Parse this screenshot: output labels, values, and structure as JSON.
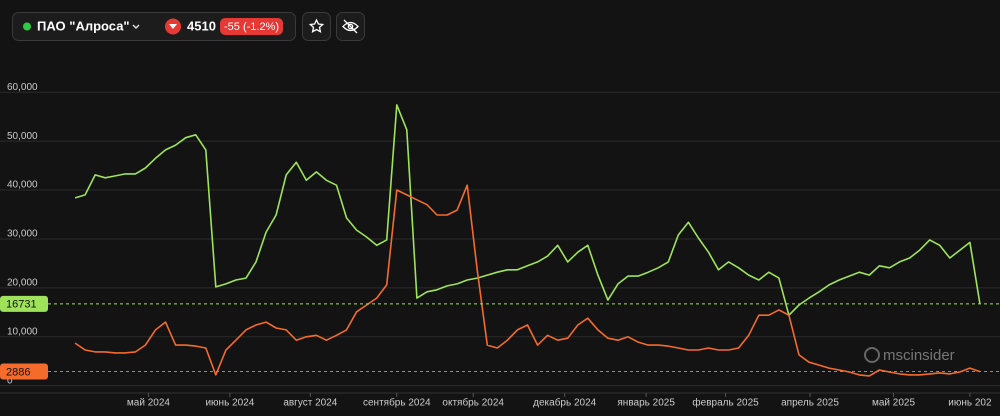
{
  "header": {
    "name": "ПАО \"Алроса\"",
    "price": "4510",
    "change": "-55 (-1.2%)"
  },
  "watermark": "mscinsider",
  "chart_data": {
    "type": "line",
    "xlim": [
      -1,
      91
    ],
    "xticks": [
      {
        "value": 7.3,
        "label": "май 2024"
      },
      {
        "value": 15.4,
        "label": "июнь 2024"
      },
      {
        "value": 23.4,
        "label": "август 2024"
      },
      {
        "value": 32,
        "label": "сентябрь 2024"
      },
      {
        "value": 39.6,
        "label": "октябрь 2024"
      },
      {
        "value": 48.7,
        "label": "декабрь 2024"
      },
      {
        "value": 56.8,
        "label": "январь 2025"
      },
      {
        "value": 64.7,
        "label": "февраль 2025"
      },
      {
        "value": 73.1,
        "label": "апрель 2025"
      },
      {
        "value": 81.4,
        "label": "май 2025"
      },
      {
        "value": 89,
        "label": "июнь 202"
      }
    ],
    "ylim": [
      -1500,
      67000
    ],
    "yticks": [
      0,
      {
        "value": 10000,
        "label": "10,000"
      },
      {
        "value": 20000,
        "label": "20,000"
      },
      {
        "value": 30000,
        "label": "30,000"
      },
      {
        "value": 40000,
        "label": "40,000"
      },
      {
        "value": 50000,
        "label": "50,000"
      },
      {
        "value": 60000,
        "label": "60,000"
      }
    ],
    "grid": true,
    "series": [
      {
        "color": "#9ee35a",
        "values": [
          38400,
          39000,
          43100,
          42500,
          42900,
          43300,
          43300,
          44500,
          46500,
          48200,
          49200,
          50700,
          51300,
          48200,
          20200,
          20800,
          21600,
          22000,
          25300,
          31400,
          34900,
          43100,
          45700,
          42000,
          43700,
          42000,
          41000,
          34300,
          31800,
          30400,
          28700,
          29800,
          57400,
          52300,
          17900,
          19200,
          19600,
          20400,
          20800,
          21600,
          22000,
          22600,
          23200,
          23700,
          23700,
          24500,
          25300,
          26500,
          28700,
          25300,
          27300,
          28700,
          22600,
          17500,
          20800,
          22400,
          22400,
          23200,
          24100,
          25300,
          30800,
          33400,
          30200,
          27300,
          23700,
          25300,
          24100,
          22600,
          21600,
          23200,
          22000,
          14400,
          16500,
          17900,
          19200,
          20600,
          21600,
          22400,
          23200,
          22600,
          24500,
          24100,
          25300,
          26100,
          27700,
          29800,
          28700,
          26100,
          27700,
          29300,
          16731
        ]
      },
      {
        "color": "#f46b2c",
        "values": [
          8700,
          7300,
          6900,
          6900,
          6700,
          6700,
          6900,
          8300,
          11400,
          13000,
          8300,
          8300,
          8100,
          7700,
          2200,
          7300,
          9300,
          11400,
          12400,
          13000,
          11800,
          11400,
          9300,
          10000,
          10300,
          9300,
          10300,
          11400,
          15100,
          16500,
          17900,
          20600,
          40000,
          39000,
          38000,
          37000,
          34900,
          34900,
          35900,
          41000,
          23700,
          8300,
          7700,
          9300,
          11400,
          12400,
          8300,
          10300,
          9300,
          9700,
          12400,
          13800,
          11400,
          9700,
          9300,
          10000,
          8900,
          8300,
          8300,
          8100,
          7700,
          7300,
          7300,
          7700,
          7300,
          7300,
          7700,
          10300,
          14400,
          14400,
          15500,
          14400,
          6300,
          4800,
          4200,
          3600,
          3200,
          2800,
          2200,
          2000,
          3200,
          2800,
          2400,
          2200,
          2200,
          2400,
          2600,
          2400,
          2800,
          3600,
          2886
        ]
      }
    ]
  }
}
